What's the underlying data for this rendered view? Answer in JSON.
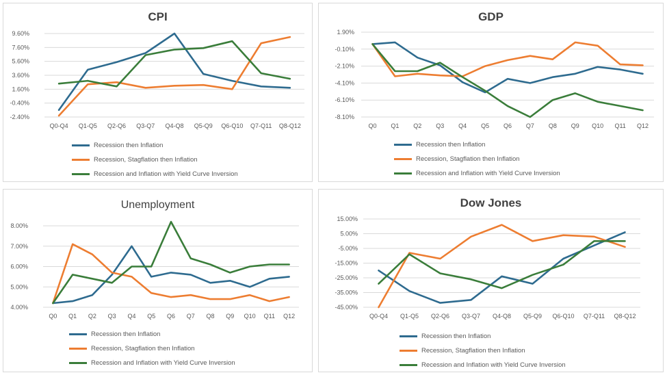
{
  "series_names": [
    "Recession then Inflation",
    "Recession, Stagflation then Inflation",
    "Recession and Inflation with Yield Curve Inversion"
  ],
  "colors": {
    "series": [
      "#2e6b8f",
      "#ed7d31",
      "#3a7d3a"
    ],
    "grid": "#d9d9d9",
    "text": "#595959",
    "title": "#404040"
  },
  "chart_data": [
    {
      "id": "cpi",
      "type": "line",
      "title": "CPI",
      "categories": [
        "Q0-Q4",
        "Q1-Q5",
        "Q2-Q6",
        "Q3-Q7",
        "Q4-Q8",
        "Q5-Q9",
        "Q6-Q10",
        "Q7-Q11",
        "Q8-Q12"
      ],
      "y_ticks": [
        "9.60%",
        "7.60%",
        "5.60%",
        "3.60%",
        "1.60%",
        "-0.40%",
        "-2.40%"
      ],
      "ylim": [
        -2.4,
        9.6
      ],
      "series": [
        {
          "name": "Recession then Inflation",
          "values": [
            -1.4,
            4.4,
            5.5,
            6.8,
            9.6,
            3.8,
            2.8,
            2.0,
            1.8
          ]
        },
        {
          "name": "Recession, Stagflation then Inflation",
          "values": [
            -2.2,
            2.3,
            2.6,
            1.8,
            2.1,
            2.2,
            1.6,
            8.2,
            9.1
          ]
        },
        {
          "name": "Recession and Inflation with Yield Curve Inversion",
          "values": [
            2.4,
            2.8,
            2.0,
            6.5,
            7.3,
            7.5,
            8.5,
            3.9,
            3.1
          ]
        }
      ]
    },
    {
      "id": "gdp",
      "type": "line",
      "title": "GDP",
      "categories": [
        "Q0",
        "Q1",
        "Q2",
        "Q3",
        "Q4",
        "Q5",
        "Q6",
        "Q7",
        "Q8",
        "Q9",
        "Q10",
        "Q11",
        "Q12"
      ],
      "y_ticks": [
        "1.90%",
        "-0.10%",
        "-2.10%",
        "-4.10%",
        "-6.10%",
        "-8.10%"
      ],
      "ylim": [
        -8.1,
        1.9
      ],
      "series": [
        {
          "name": "Recession then Inflation",
          "values": [
            0.5,
            0.7,
            -1.1,
            -2.0,
            -4.0,
            -5.2,
            -3.6,
            -4.1,
            -3.4,
            -3.0,
            -2.2,
            -2.5,
            -3.0
          ]
        },
        {
          "name": "Recession, Stagflation then Inflation",
          "values": [
            0.5,
            -3.3,
            -3.0,
            -3.2,
            -3.3,
            -2.1,
            -1.4,
            -0.9,
            -1.3,
            0.7,
            0.3,
            -1.9,
            -2.0
          ]
        },
        {
          "name": "Recession and Inflation with Yield Curve Inversion",
          "values": [
            0.5,
            -2.7,
            -2.7,
            -1.7,
            -3.4,
            -5.0,
            -6.8,
            -8.1,
            -6.1,
            -5.3,
            -6.3,
            -6.8,
            -7.3
          ]
        }
      ]
    },
    {
      "id": "unemployment",
      "type": "line",
      "title": "Unemployment",
      "categories": [
        "Q0",
        "Q1",
        "Q2",
        "Q3",
        "Q4",
        "Q5",
        "Q6",
        "Q7",
        "Q8",
        "Q9",
        "Q10",
        "Q11",
        "Q12"
      ],
      "y_ticks": [
        "8.00%",
        "7.00%",
        "6.00%",
        "5.00%",
        "4.00%"
      ],
      "ylim": [
        4.0,
        8.0
      ],
      "series": [
        {
          "name": "Recession then Inflation",
          "values": [
            4.2,
            4.3,
            4.6,
            5.6,
            7.0,
            5.5,
            5.7,
            5.6,
            5.2,
            5.3,
            5.0,
            5.4,
            5.5
          ]
        },
        {
          "name": "Recession, Stagflation then Inflation",
          "values": [
            4.2,
            7.1,
            6.6,
            5.7,
            5.5,
            4.7,
            4.5,
            4.6,
            4.4,
            4.4,
            4.6,
            4.3,
            4.5
          ]
        },
        {
          "name": "Recession and Inflation with Yield Curve Inversion",
          "values": [
            4.2,
            5.6,
            5.4,
            5.2,
            6.0,
            6.0,
            8.2,
            6.4,
            6.1,
            5.7,
            6.0,
            6.1,
            6.1
          ]
        }
      ]
    },
    {
      "id": "dow",
      "type": "line",
      "title": "Dow Jones",
      "categories": [
        "Q0-Q4",
        "Q1-Q5",
        "Q2-Q6",
        "Q3-Q7",
        "Q4-Q8",
        "Q5-Q9",
        "Q6-Q10",
        "Q7-Q11",
        "Q8-Q12"
      ],
      "y_ticks": [
        "15.00%",
        "5.00%",
        "-5.00%",
        "-15.00%",
        "-25.00%",
        "-35.00%",
        "-45.00%"
      ],
      "ylim": [
        -45,
        15
      ],
      "series": [
        {
          "name": "Recession then Inflation",
          "values": [
            -20,
            -34,
            -42,
            -40,
            -24,
            -29,
            -12,
            -3,
            6
          ]
        },
        {
          "name": "Recession, Stagflation then Inflation",
          "values": [
            -45,
            -8,
            -12,
            3,
            11,
            0,
            4,
            3,
            -4
          ]
        },
        {
          "name": "Recession and Inflation with Yield Curve Inversion",
          "values": [
            -29,
            -9,
            -22,
            -26,
            -32,
            -23,
            -16,
            0,
            0
          ]
        }
      ]
    }
  ]
}
